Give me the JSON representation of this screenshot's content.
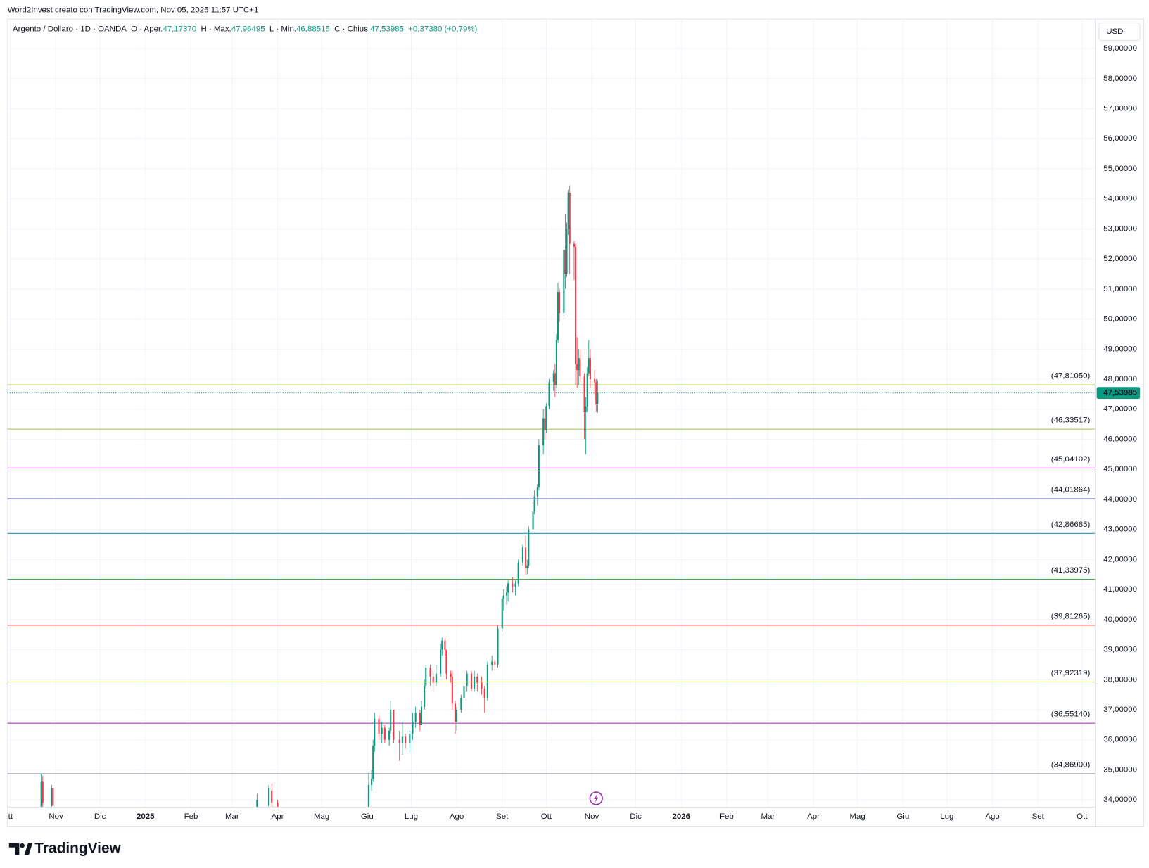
{
  "header": {
    "attribution": "Word2Invest creato con TradingView.com, Nov 05, 2025 11:57 UTC+1"
  },
  "chart_data": {
    "type": "candlestick",
    "legend": {
      "symbol": "Argento / Dollaro · 1D · OANDA",
      "items": [
        {
          "key": "O",
          "label": "· Aper.",
          "value": "47,17370"
        },
        {
          "key": "H",
          "label": "· Max.",
          "value": "47,96495"
        },
        {
          "key": "L",
          "label": "· Min.",
          "value": "46,88515"
        },
        {
          "key": "C",
          "label": "· Chius.",
          "value": "47,53985"
        }
      ],
      "change": "+0,37380 (+0,79%)"
    },
    "currency": "USD",
    "x": [
      "2024-10-22",
      "2024-10-23",
      "2024-10-29",
      "2024-10-30",
      "2025-03-18",
      "2025-03-26",
      "2025-03-28",
      "2025-04-01",
      "2025-06-02",
      "2025-06-04",
      "2025-06-05",
      "2025-06-06",
      "2025-06-09",
      "2025-06-11",
      "2025-06-13",
      "2025-06-16",
      "2025-06-17",
      "2025-06-19",
      "2025-06-23",
      "2025-06-25",
      "2025-06-27",
      "2025-06-30",
      "2025-07-02",
      "2025-07-04",
      "2025-07-07",
      "2025-07-08",
      "2025-07-10",
      "2025-07-11",
      "2025-07-14",
      "2025-07-16",
      "2025-07-18",
      "2025-07-21",
      "2025-07-22",
      "2025-07-24",
      "2025-07-25",
      "2025-07-28",
      "2025-07-29",
      "2025-07-31",
      "2025-08-01",
      "2025-08-04",
      "2025-08-06",
      "2025-08-08",
      "2025-08-11",
      "2025-08-13",
      "2025-08-15",
      "2025-08-18",
      "2025-08-20",
      "2025-08-22",
      "2025-08-25",
      "2025-08-27",
      "2025-08-29",
      "2025-09-01",
      "2025-09-02",
      "2025-09-04",
      "2025-09-05",
      "2025-09-08",
      "2025-09-10",
      "2025-09-12",
      "2025-09-15",
      "2025-09-17",
      "2025-09-18",
      "2025-09-19",
      "2025-09-22",
      "2025-09-23",
      "2025-09-25",
      "2025-09-26",
      "2025-09-29",
      "2025-09-30",
      "2025-10-01",
      "2025-10-03",
      "2025-10-06",
      "2025-10-07",
      "2025-10-08",
      "2025-10-09",
      "2025-10-10",
      "2025-10-13",
      "2025-10-14",
      "2025-10-15",
      "2025-10-16",
      "2025-10-17",
      "2025-10-20",
      "2025-10-21",
      "2025-10-22",
      "2025-10-23",
      "2025-10-24",
      "2025-10-27",
      "2025-10-28",
      "2025-10-29",
      "2025-10-30",
      "2025-10-31",
      "2025-11-03",
      "2025-11-04",
      "2025-11-05"
    ],
    "open": [
      33.5,
      34.6,
      33.8,
      34.4,
      33.6,
      33.8,
      34.3,
      33.9,
      33.2,
      34.5,
      34.7,
      35.8,
      36.7,
      36.2,
      36.4,
      36.0,
      36.3,
      37.0,
      36.0,
      35.9,
      36.1,
      35.9,
      36.2,
      36.6,
      36.9,
      36.5,
      37.1,
      37.8,
      38.4,
      38.1,
      37.9,
      38.2,
      39.0,
      39.3,
      39.0,
      38.2,
      38.1,
      37.2,
      36.6,
      37.0,
      37.4,
      37.8,
      38.2,
      37.7,
      38.1,
      37.9,
      37.7,
      37.4,
      38.5,
      38.6,
      38.5,
      39.7,
      40.7,
      40.8,
      40.9,
      41.2,
      41.1,
      41.2,
      41.9,
      42.4,
      41.7,
      41.8,
      43.0,
      43.6,
      44.1,
      44.4,
      45.8,
      46.7,
      46.3,
      47.1,
      47.9,
      48.2,
      47.8,
      49.3,
      50.9,
      50.2,
      52.3,
      51.5,
      53.0,
      54.2,
      52.5,
      52.4,
      48.5,
      48.3,
      48.7,
      48.1,
      46.9,
      47.1,
      48.2,
      48.7,
      48.0,
      47.9,
      47.1737
    ],
    "high": [
      34.87,
      34.8,
      34.5,
      34.5,
      34.2,
      34.5,
      34.55,
      34.0,
      34.9,
      35.0,
      36.0,
      36.9,
      36.8,
      36.6,
      36.5,
      36.4,
      37.3,
      37.0,
      36.3,
      36.6,
      36.2,
      36.3,
      36.9,
      37.1,
      37.0,
      37.3,
      38.0,
      38.5,
      38.5,
      38.3,
      38.5,
      39.2,
      39.4,
      39.4,
      39.0,
      38.3,
      38.3,
      37.3,
      37.1,
      37.5,
      37.9,
      38.3,
      38.3,
      38.3,
      38.2,
      38.1,
      37.8,
      38.6,
      38.8,
      38.7,
      39.8,
      40.8,
      41.0,
      41.1,
      41.3,
      41.4,
      41.3,
      42.0,
      42.5,
      42.8,
      42.0,
      43.1,
      43.8,
      44.3,
      44.5,
      46.0,
      47.0,
      47.0,
      47.2,
      48.0,
      48.3,
      48.5,
      49.5,
      51.2,
      51.0,
      52.5,
      53.5,
      53.2,
      54.3,
      54.45,
      52.6,
      52.5,
      49.4,
      49.0,
      49.0,
      48.2,
      47.4,
      48.4,
      49.3,
      49.0,
      48.3,
      48.0,
      47.96495
    ],
    "low": [
      33.3,
      33.6,
      33.6,
      33.7,
      33.5,
      33.6,
      33.7,
      33.6,
      33.0,
      34.3,
      34.6,
      35.6,
      36.0,
      35.9,
      35.9,
      35.8,
      36.2,
      35.9,
      35.3,
      35.5,
      35.7,
      35.6,
      36.0,
      36.4,
      36.3,
      36.5,
      37.0,
      37.7,
      37.8,
      37.6,
      37.8,
      38.1,
      38.8,
      38.8,
      38.0,
      37.9,
      37.0,
      36.2,
      36.3,
      36.9,
      37.3,
      37.6,
      37.6,
      37.6,
      37.6,
      37.5,
      36.9,
      37.3,
      38.3,
      38.3,
      38.4,
      39.6,
      40.3,
      40.5,
      40.6,
      40.9,
      40.8,
      41.1,
      41.8,
      41.5,
      41.5,
      41.7,
      42.9,
      43.5,
      43.8,
      44.3,
      45.5,
      46.0,
      46.2,
      47.0,
      47.6,
      47.4,
      47.7,
      49.2,
      49.9,
      50.1,
      51.0,
      51.4,
      52.8,
      51.5,
      51.3,
      47.8,
      47.7,
      47.8,
      47.9,
      46.0,
      45.5,
      46.9,
      48.1,
      47.7,
      47.5,
      46.9,
      46.88515
    ],
    "close": [
      34.6,
      33.9,
      34.4,
      33.8,
      34.0,
      34.4,
      33.9,
      33.7,
      34.5,
      34.7,
      35.8,
      36.7,
      36.2,
      36.4,
      36.0,
      36.3,
      37.0,
      36.0,
      35.9,
      36.1,
      35.9,
      36.2,
      36.6,
      36.9,
      36.5,
      37.1,
      37.8,
      38.4,
      38.1,
      37.9,
      38.2,
      39.0,
      39.3,
      39.0,
      38.2,
      38.1,
      37.2,
      36.6,
      37.0,
      37.4,
      37.8,
      38.2,
      37.7,
      38.1,
      37.9,
      37.7,
      37.4,
      38.5,
      38.6,
      38.5,
      39.7,
      40.7,
      40.8,
      40.9,
      41.2,
      41.1,
      41.2,
      41.9,
      42.4,
      41.7,
      41.8,
      43.0,
      43.6,
      44.1,
      44.4,
      45.8,
      46.7,
      46.3,
      47.1,
      47.9,
      48.2,
      47.8,
      49.3,
      50.9,
      50.2,
      52.3,
      51.5,
      53.0,
      54.2,
      52.5,
      52.4,
      48.5,
      48.3,
      48.7,
      48.1,
      46.9,
      47.1,
      48.2,
      48.7,
      48.0,
      47.9,
      47.17,
      47.53985
    ],
    "up_color": "#089981",
    "down_color": "#f23645",
    "xlim": [
      "2024-09-29",
      "2026-10-10"
    ],
    "xticks": [
      {
        "value": "2024-10-01",
        "label": "tt"
      },
      {
        "value": "2024-11-01",
        "label": "Nov"
      },
      {
        "value": "2024-12-01",
        "label": "Dic"
      },
      {
        "value": "2025-01-01",
        "label": "2025"
      },
      {
        "value": "2025-02-01",
        "label": "Feb"
      },
      {
        "value": "2025-03-01",
        "label": "Mar"
      },
      {
        "value": "2025-04-01",
        "label": "Apr"
      },
      {
        "value": "2025-05-01",
        "label": "Mag"
      },
      {
        "value": "2025-06-01",
        "label": "Giu"
      },
      {
        "value": "2025-07-01",
        "label": "Lug"
      },
      {
        "value": "2025-08-01",
        "label": "Ago"
      },
      {
        "value": "2025-09-01",
        "label": "Set"
      },
      {
        "value": "2025-10-01",
        "label": "Ott"
      },
      {
        "value": "2025-11-01",
        "label": "Nov"
      },
      {
        "value": "2025-12-01",
        "label": "Dic"
      },
      {
        "value": "2026-01-01",
        "label": "2026"
      },
      {
        "value": "2026-02-01",
        "label": "Feb"
      },
      {
        "value": "2026-03-01",
        "label": "Mar"
      },
      {
        "value": "2026-04-01",
        "label": "Apr"
      },
      {
        "value": "2026-05-01",
        "label": "Mag"
      },
      {
        "value": "2026-06-01",
        "label": "Giu"
      },
      {
        "value": "2026-07-01",
        "label": "Lug"
      },
      {
        "value": "2026-08-01",
        "label": "Ago"
      },
      {
        "value": "2026-09-01",
        "label": "Set"
      },
      {
        "value": "2026-10-01",
        "label": "Ott"
      }
    ],
    "ylim": [
      33.76,
      59.98
    ],
    "yticks": [
      {
        "value": 34,
        "label": "34,00000"
      },
      {
        "value": 35,
        "label": "35,00000"
      },
      {
        "value": 36,
        "label": "36,00000"
      },
      {
        "value": 37,
        "label": "37,00000"
      },
      {
        "value": 38,
        "label": "38,00000"
      },
      {
        "value": 39,
        "label": "39,00000"
      },
      {
        "value": 40,
        "label": "40,00000"
      },
      {
        "value": 41,
        "label": "41,00000"
      },
      {
        "value": 42,
        "label": "42,00000"
      },
      {
        "value": 43,
        "label": "43,00000"
      },
      {
        "value": 44,
        "label": "44,00000"
      },
      {
        "value": 45,
        "label": "45,00000"
      },
      {
        "value": 46,
        "label": "46,00000"
      },
      {
        "value": 47,
        "label": "47,00000"
      },
      {
        "value": 48,
        "label": "48,00000"
      },
      {
        "value": 49,
        "label": "49,00000"
      },
      {
        "value": 50,
        "label": "50,00000"
      },
      {
        "value": 51,
        "label": "51,00000"
      },
      {
        "value": 52,
        "label": "52,00000"
      },
      {
        "value": 53,
        "label": "53,00000"
      },
      {
        "value": 54,
        "label": "54,00000"
      },
      {
        "value": 55,
        "label": "55,00000"
      },
      {
        "value": 56,
        "label": "56,00000"
      },
      {
        "value": 57,
        "label": "57,00000"
      },
      {
        "value": 58,
        "label": "58,00000"
      },
      {
        "value": 59,
        "label": "59,00000"
      }
    ],
    "levels": [
      {
        "value": 47.8105,
        "label": "(47,81050)",
        "color": "#a3c43a"
      },
      {
        "value": 46.33517,
        "label": "(46,33517)",
        "color": "#a3c43a"
      },
      {
        "value": 45.04102,
        "label": "(45,04102)",
        "color": "#9c27b0"
      },
      {
        "value": 44.01864,
        "label": "(44,01864)",
        "color": "#283593"
      },
      {
        "value": 42.86685,
        "label": "(42,86685)",
        "color": "#2196c4"
      },
      {
        "value": 41.33975,
        "label": "(41,33975)",
        "color": "#43b049"
      },
      {
        "value": 39.81265,
        "label": "(39,81265)",
        "color": "#e53935"
      },
      {
        "value": 37.92319,
        "label": "(37,92319)",
        "color": "#a3c43a"
      },
      {
        "value": 36.5514,
        "label": "(36,55140)",
        "color": "#9c27b0"
      },
      {
        "value": 34.869,
        "label": "(34,86900)",
        "color": "#787b86"
      }
    ],
    "last_price": {
      "value": 47.53985,
      "label": "47,53985",
      "color": "#089981"
    },
    "grid": true
  },
  "footer": {
    "brand": "TradingView"
  }
}
